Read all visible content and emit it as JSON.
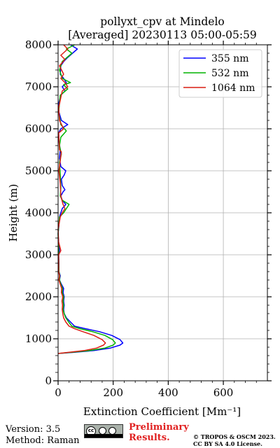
{
  "title": {
    "line1": "pollyxt_cpv at Mindelo",
    "line2": "[Averaged] 20230113 05:00-05:59"
  },
  "chart_data": {
    "type": "line",
    "xlabel": "Extinction Coefficient [Mm⁻¹]",
    "ylabel": "Height (m)",
    "xlim": [
      0,
      760
    ],
    "ylim": [
      0,
      8000
    ],
    "xticks": [
      0,
      200,
      400,
      600
    ],
    "yticks": [
      0,
      1000,
      2000,
      3000,
      4000,
      5000,
      6000,
      7000,
      8000
    ],
    "grid": true,
    "legend_position": "top-right",
    "series": [
      {
        "name": "355 nm",
        "color": "#0000ff",
        "points": [
          [
            0,
            650
          ],
          [
            60,
            680
          ],
          [
            130,
            720
          ],
          [
            190,
            780
          ],
          [
            225,
            850
          ],
          [
            235,
            900
          ],
          [
            225,
            980
          ],
          [
            195,
            1080
          ],
          [
            150,
            1170
          ],
          [
            100,
            1240
          ],
          [
            60,
            1300
          ],
          [
            45,
            1400
          ],
          [
            30,
            1500
          ],
          [
            22,
            1600
          ],
          [
            20,
            1700
          ],
          [
            22,
            1800
          ],
          [
            20,
            1900
          ],
          [
            22,
            2000
          ],
          [
            18,
            2100
          ],
          [
            20,
            2200
          ],
          [
            12,
            2300
          ],
          [
            5,
            2400
          ],
          [
            8,
            2500
          ],
          [
            3,
            2600
          ],
          [
            3,
            2800
          ],
          [
            2,
            3000
          ],
          [
            5,
            3100
          ],
          [
            2,
            3300
          ],
          [
            0,
            3500
          ],
          [
            3,
            3700
          ],
          [
            5,
            3900
          ],
          [
            10,
            4000
          ],
          [
            15,
            4100
          ],
          [
            28,
            4200
          ],
          [
            15,
            4300
          ],
          [
            10,
            4400
          ],
          [
            18,
            4500
          ],
          [
            25,
            4550
          ],
          [
            15,
            4650
          ],
          [
            12,
            4800
          ],
          [
            22,
            4900
          ],
          [
            28,
            5000
          ],
          [
            10,
            5100
          ],
          [
            5,
            5300
          ],
          [
            8,
            5500
          ],
          [
            3,
            5700
          ],
          [
            2,
            5900
          ],
          [
            10,
            6000
          ],
          [
            35,
            6100
          ],
          [
            12,
            6200
          ],
          [
            3,
            6400
          ],
          [
            2,
            6600
          ],
          [
            10,
            6800
          ],
          [
            25,
            6900
          ],
          [
            15,
            7000
          ],
          [
            30,
            7100
          ],
          [
            20,
            7200
          ],
          [
            8,
            7300
          ],
          [
            10,
            7500
          ],
          [
            20,
            7600
          ],
          [
            35,
            7700
          ],
          [
            70,
            7900
          ],
          [
            45,
            8000
          ]
        ]
      },
      {
        "name": "532 nm",
        "color": "#00b400",
        "points": [
          [
            0,
            650
          ],
          [
            50,
            680
          ],
          [
            115,
            720
          ],
          [
            170,
            780
          ],
          [
            200,
            850
          ],
          [
            208,
            900
          ],
          [
            198,
            980
          ],
          [
            170,
            1080
          ],
          [
            125,
            1170
          ],
          [
            80,
            1240
          ],
          [
            50,
            1300
          ],
          [
            38,
            1400
          ],
          [
            28,
            1500
          ],
          [
            22,
            1600
          ],
          [
            18,
            1700
          ],
          [
            20,
            1800
          ],
          [
            18,
            1900
          ],
          [
            20,
            2000
          ],
          [
            15,
            2100
          ],
          [
            16,
            2200
          ],
          [
            10,
            2300
          ],
          [
            5,
            2400
          ],
          [
            6,
            2500
          ],
          [
            3,
            2600
          ],
          [
            2,
            3000
          ],
          [
            0,
            3500
          ],
          [
            5,
            3900
          ],
          [
            20,
            4000
          ],
          [
            30,
            4100
          ],
          [
            40,
            4200
          ],
          [
            15,
            4300
          ],
          [
            8,
            4400
          ],
          [
            10,
            4600
          ],
          [
            8,
            4900
          ],
          [
            5,
            5200
          ],
          [
            12,
            5400
          ],
          [
            5,
            5600
          ],
          [
            10,
            5800
          ],
          [
            30,
            5950
          ],
          [
            10,
            6100
          ],
          [
            2,
            6400
          ],
          [
            8,
            6800
          ],
          [
            35,
            6950
          ],
          [
            20,
            7050
          ],
          [
            45,
            7100
          ],
          [
            15,
            7200
          ],
          [
            5,
            7400
          ],
          [
            15,
            7600
          ],
          [
            50,
            7800
          ],
          [
            30,
            7900
          ],
          [
            60,
            8000
          ]
        ]
      },
      {
        "name": "1064 nm",
        "color": "#dc1e14",
        "points": [
          [
            0,
            650
          ],
          [
            40,
            680
          ],
          [
            95,
            720
          ],
          [
            140,
            780
          ],
          [
            165,
            850
          ],
          [
            172,
            900
          ],
          [
            160,
            980
          ],
          [
            130,
            1080
          ],
          [
            90,
            1170
          ],
          [
            60,
            1240
          ],
          [
            40,
            1300
          ],
          [
            28,
            1400
          ],
          [
            20,
            1500
          ],
          [
            17,
            1600
          ],
          [
            15,
            1700
          ],
          [
            16,
            1800
          ],
          [
            14,
            1900
          ],
          [
            17,
            2000
          ],
          [
            12,
            2100
          ],
          [
            13,
            2200
          ],
          [
            8,
            2300
          ],
          [
            3,
            2400
          ],
          [
            5,
            2500
          ],
          [
            2,
            2600
          ],
          [
            2,
            3000
          ],
          [
            10,
            3100
          ],
          [
            2,
            3300
          ],
          [
            0,
            3600
          ],
          [
            8,
            3900
          ],
          [
            15,
            4000
          ],
          [
            25,
            4100
          ],
          [
            18,
            4200
          ],
          [
            10,
            4400
          ],
          [
            8,
            4700
          ],
          [
            3,
            5000
          ],
          [
            12,
            5450
          ],
          [
            5,
            5500
          ],
          [
            2,
            5900
          ],
          [
            20,
            6000
          ],
          [
            5,
            6200
          ],
          [
            2,
            6500
          ],
          [
            15,
            6900
          ],
          [
            35,
            7000
          ],
          [
            25,
            7100
          ],
          [
            10,
            7200
          ],
          [
            20,
            7300
          ],
          [
            5,
            7500
          ],
          [
            25,
            7650
          ],
          [
            10,
            7750
          ],
          [
            35,
            7900
          ],
          [
            20,
            8000
          ]
        ]
      }
    ]
  },
  "footer": {
    "version": "Version: 3.5",
    "method": "Method: Raman",
    "preliminary_line1": "Preliminary",
    "preliminary_line2": "Results.",
    "copyright_line1": "© TROPOS & OSCM 2023.",
    "copyright_line2": "CC BY SA 4.0 License.",
    "badge_cc": "cc",
    "badge_text": "BY SA",
    "preliminary_color": "#e02020"
  }
}
